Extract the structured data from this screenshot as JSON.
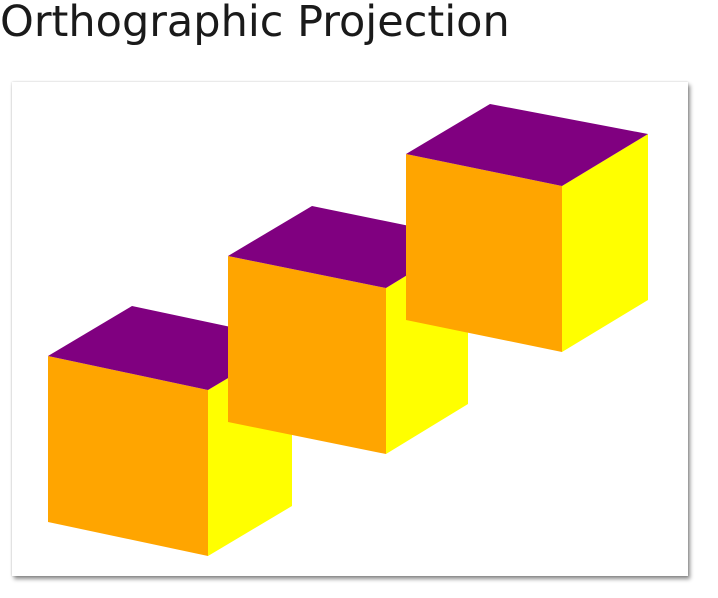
{
  "page": {
    "title": "Orthographic Projection"
  },
  "scene": {
    "cube_count": 3,
    "colors": {
      "top": "#800080",
      "front": "#FFA500",
      "side": "#FFFF00",
      "background": "#FFFFFF"
    }
  }
}
